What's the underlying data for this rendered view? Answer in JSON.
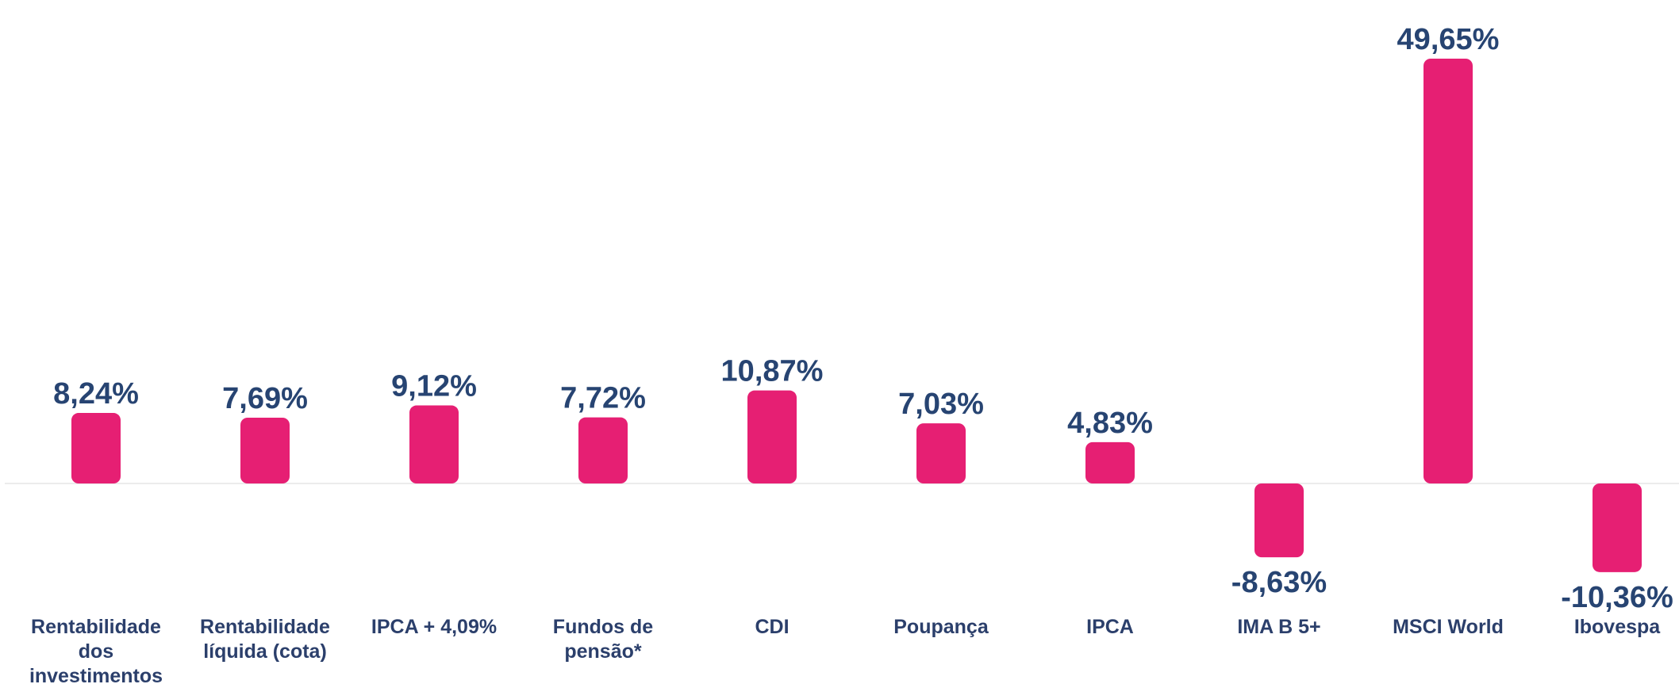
{
  "chart_data": {
    "type": "bar",
    "categories": [
      "Rentabilidade dos investimentos",
      "Rentabilidade líquida (cota)",
      "IPCA + 4,09%",
      "Fundos de pensão*",
      "CDI",
      "Poupança",
      "IPCA",
      "IMA B 5+",
      "MSCI World",
      "Ibovespa"
    ],
    "values": [
      8.24,
      7.69,
      9.12,
      7.72,
      10.87,
      7.03,
      4.83,
      -8.63,
      49.65,
      -10.36
    ],
    "value_labels": [
      "8,24%",
      "7,69%",
      "9,12%",
      "7,72%",
      "10,87%",
      "7,03%",
      "4,83%",
      "-8,63%",
      "49,65%",
      "-10,36%"
    ],
    "color": "#e61f73"
  }
}
